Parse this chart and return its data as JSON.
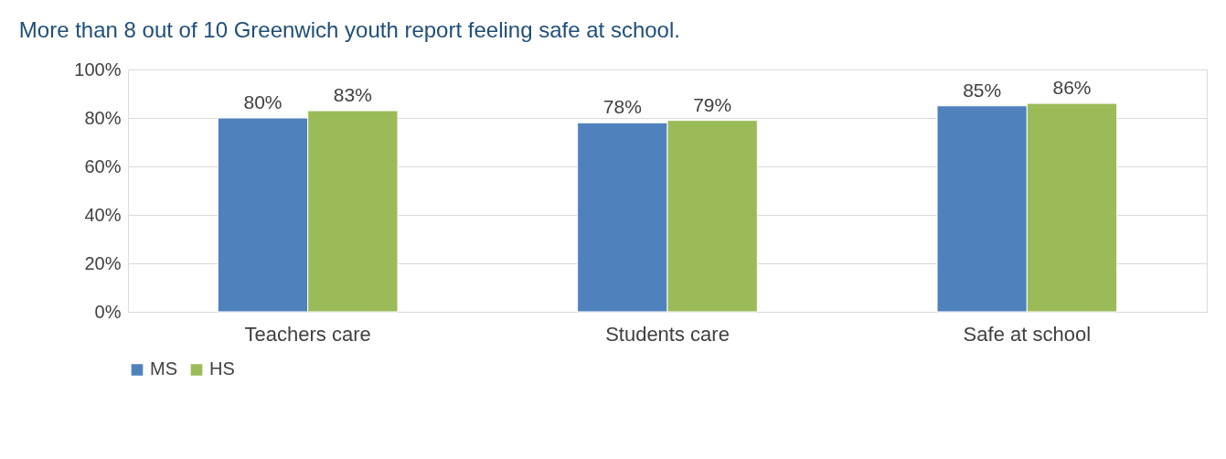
{
  "chart_data": {
    "type": "bar",
    "title": "More than 8 out of 10 Greenwich youth report feeling safe at school.",
    "categories": [
      "Teachers care",
      "Students care",
      "Safe at school"
    ],
    "series": [
      {
        "name": "MS",
        "color": "#4f81bd",
        "values": [
          80,
          78,
          85
        ],
        "value_labels": [
          "80%",
          "78%",
          "85%"
        ]
      },
      {
        "name": "HS",
        "color": "#9bbb59",
        "values": [
          83,
          79,
          86
        ],
        "value_labels": [
          "83%",
          "79%",
          "86%"
        ]
      }
    ],
    "ylim": [
      0,
      100
    ],
    "yticks": [
      {
        "value": 0,
        "label": "0%"
      },
      {
        "value": 20,
        "label": "20%"
      },
      {
        "value": 40,
        "label": "40%"
      },
      {
        "value": 60,
        "label": "60%"
      },
      {
        "value": 80,
        "label": "80%"
      },
      {
        "value": 100,
        "label": "100%"
      }
    ],
    "grid": "y",
    "legend": "bottom"
  }
}
